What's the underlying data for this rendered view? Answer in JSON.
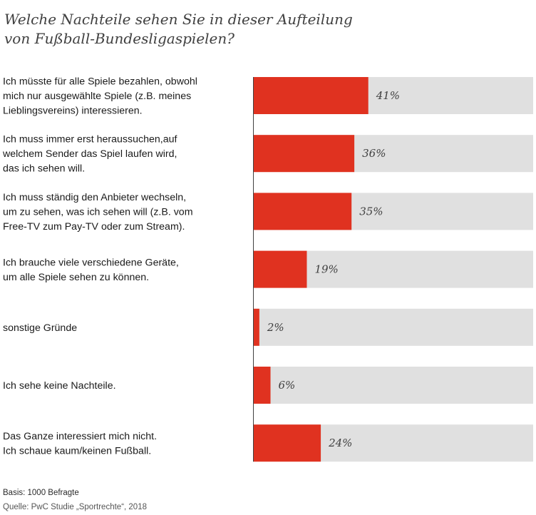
{
  "chart_data": {
    "type": "bar",
    "orientation": "horizontal",
    "title": "Welche Nachteile sehen Sie in dieser Aufteilung\nvon Fußball-Bundesligaspielen?",
    "categories": [
      "Ich müsste für alle Spiele bezahlen, obwohl\nmich nur ausgewählte Spiele (z.B. meines\nLieblingsvereins) interessieren.",
      "Ich muss immer erst heraussuchen,auf\nwelchem Sender das Spiel laufen wird,\ndas ich sehen will.",
      "Ich muss ständig den Anbieter wechseln,\num zu sehen, was ich sehen will (z.B. vom\nFree-TV zum Pay-TV oder zum Stream).",
      "Ich brauche viele verschiedene Geräte,\num alle Spiele sehen zu können.",
      "sonstige Gründe",
      "Ich sehe keine Nachteile.",
      "Das Ganze interessiert mich nicht.\nIch schaue kaum/keinen Fußball."
    ],
    "values": [
      41,
      36,
      35,
      19,
      2,
      6,
      24
    ],
    "value_labels": [
      "41%",
      "36%",
      "35%",
      "19%",
      "2%",
      "6%",
      "24%"
    ],
    "xlim": [
      0,
      100
    ],
    "colors": {
      "bar": "#e03220",
      "track": "#e0e0e0",
      "axis": "#404040"
    }
  },
  "footer": {
    "basis": "Basis: 1000 Befragte",
    "source": "Quelle: PwC Studie „Sportrechte“, 2018"
  }
}
